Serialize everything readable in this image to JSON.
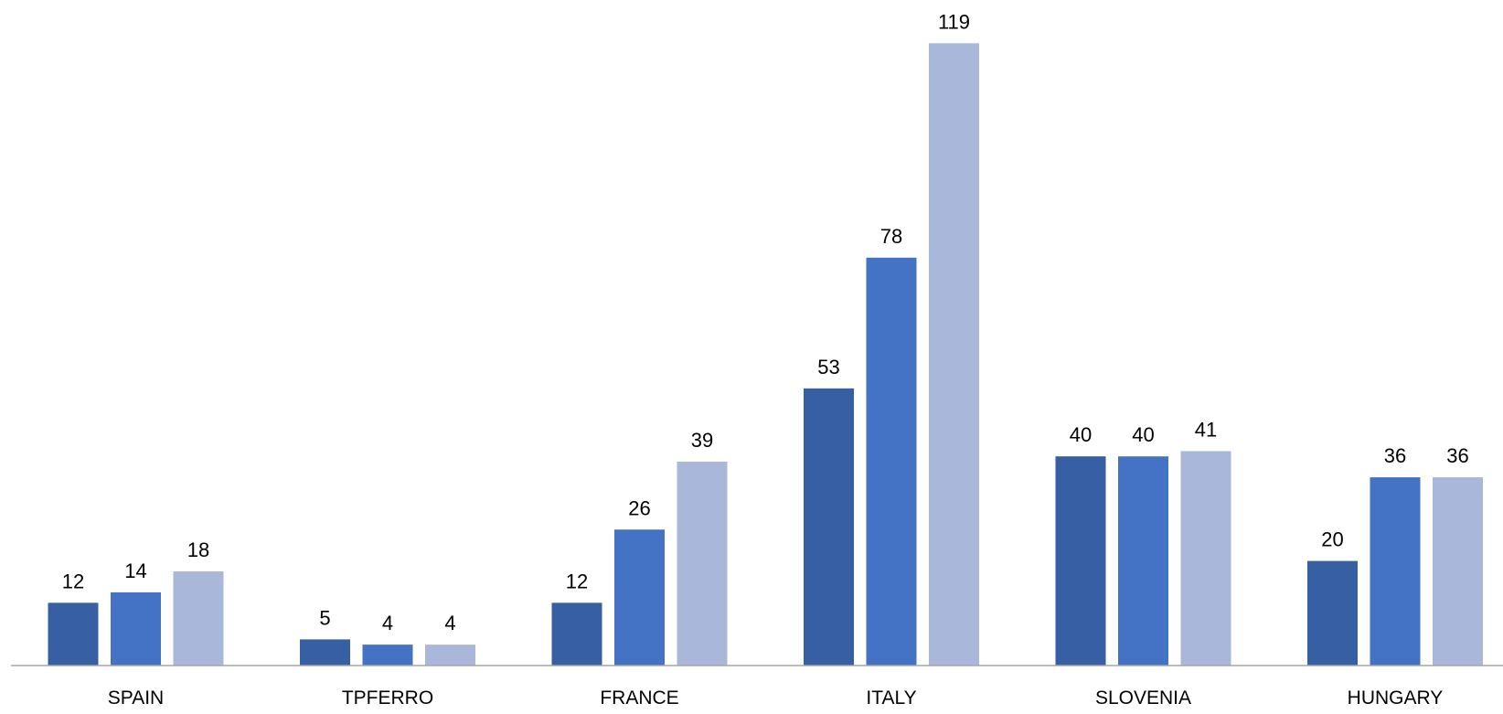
{
  "chart_data": {
    "type": "bar",
    "categories": [
      "SPAIN",
      "TPFERRO",
      "FRANCE",
      "ITALY",
      "SLOVENIA",
      "HUNGARY"
    ],
    "series": [
      {
        "values": [
          12,
          5,
          12,
          53,
          40,
          20
        ],
        "color": "#375FA3"
      },
      {
        "values": [
          14,
          4,
          26,
          78,
          40,
          36
        ],
        "color": "#4472C4"
      },
      {
        "values": [
          18,
          4,
          39,
          119,
          41,
          36
        ],
        "color": "#A9B7DB"
      }
    ],
    "title": "",
    "xlabel": "",
    "ylabel": "",
    "ylim": [
      0,
      120
    ],
    "grid": false,
    "legend": "none",
    "data_labels": true,
    "axis_color": "#A6A6A6"
  }
}
